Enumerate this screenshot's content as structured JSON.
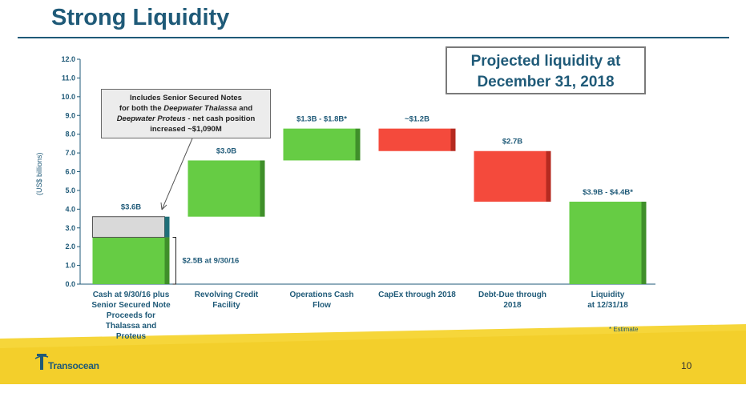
{
  "title": "Strong Liquidity",
  "projected_box": {
    "line1": "Projected liquidity at",
    "line2": "December 31, 2018"
  },
  "callout": {
    "line1": "Includes Senior Secured Notes",
    "line2a": "for both the ",
    "line2b": "Deepwater Thalassa",
    "line2c": " and",
    "line3a": "Deepwater Proteus",
    "line3b": " - net cash position",
    "line4": "increased ~$1,090M"
  },
  "bracket_label": "$2.5B at 9/30/16",
  "estimate_note": "* Estimate",
  "logo_text": "Transocean",
  "page_number": "10",
  "colors": {
    "title": "#1f5a78",
    "green": "#66cc44",
    "green_dark": "#3f8f2a",
    "red": "#f44a3c",
    "red_dark": "#b52a20",
    "grey_box": "#d9d9d9",
    "teal_edge": "#1f6f78",
    "footer_yellow": "#f3cf2b"
  },
  "chart_data": {
    "type": "bar",
    "subtype": "waterfall",
    "ylabel": "(US$ billions)",
    "ylim": [
      0,
      12
    ],
    "yticks": [
      "0.0",
      "1.0",
      "2.0",
      "3.0",
      "4.0",
      "5.0",
      "6.0",
      "7.0",
      "8.0",
      "9.0",
      "10.0",
      "11.0",
      "12.0"
    ],
    "categories": [
      [
        "Cash at 9/30/16 plus",
        "Senior Secured Note",
        "Proceeds for",
        "Thalassa and",
        "Proteus"
      ],
      [
        "Revolving Credit",
        "Facility"
      ],
      [
        "Operations Cash",
        "Flow"
      ],
      [
        "CapEx through 2018"
      ],
      [
        "Debt-Due through",
        "2018"
      ],
      [
        "Liquidity",
        "at 12/31/18"
      ]
    ],
    "bars": [
      {
        "base": 0,
        "top": 2.5,
        "kind": "increase",
        "label": ""
      },
      {
        "base": 2.5,
        "top": 3.6,
        "kind": "grey",
        "label": "$3.6B"
      },
      {
        "base": 3.6,
        "top": 6.6,
        "kind": "increase",
        "label": "$3.0B"
      },
      {
        "base": 6.6,
        "top": 8.3,
        "kind": "increase",
        "label": "$1.3B - $1.8B*"
      },
      {
        "base": 7.1,
        "top": 8.3,
        "kind": "decrease",
        "label": "~$1.2B"
      },
      {
        "base": 4.4,
        "top": 7.1,
        "kind": "decrease",
        "label": "$2.7B"
      },
      {
        "base": 0,
        "top": 4.4,
        "kind": "increase",
        "label": "$3.9B - $4.4B*"
      }
    ]
  }
}
